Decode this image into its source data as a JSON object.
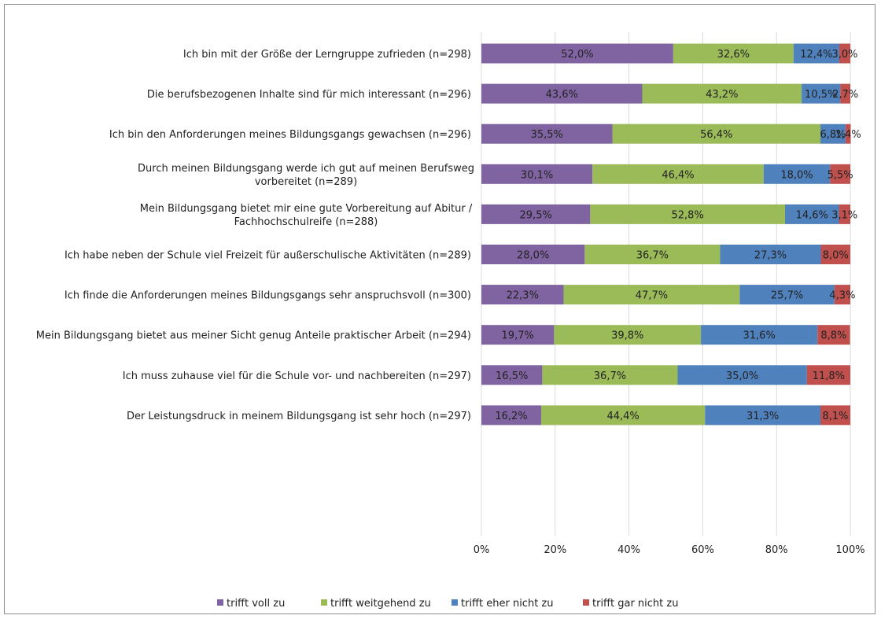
{
  "chart_data": {
    "type": "bar",
    "orientation": "horizontal",
    "stacked": "percent",
    "categories": [
      "Ich bin mit der Größe der Lerngruppe zufrieden (n=298)",
      "Die berufsbezogenen Inhalte sind für mich interessant (n=296)",
      "Ich bin den Anforderungen meines Bildungsgangs gewachsen (n=296)",
      "Durch meinen Bildungsgang werde ich gut auf meinen Berufsweg vorbereitet (n=289)",
      "Mein Bildungsgang bietet mir eine gute Vorbereitung auf Abitur / Fachhochschulreife (n=288)",
      "Ich habe neben der Schule viel Freizeit für außerschulische Aktivitäten (n=289)",
      "Ich finde die Anforderungen meines Bildungsgangs sehr anspruchsvoll (n=300)",
      "Mein Bildungsgang bietet aus meiner Sicht genug Anteile praktischer Arbeit (n=294)",
      "Ich muss zuhause viel für die Schule vor- und nachbereiten (n=297)",
      "Der Leistungsdruck in meinem Bildungsgang ist sehr hoch (n=297)"
    ],
    "category_lines": [
      [
        "Ich bin mit der Größe der Lerngruppe zufrieden (n=298)"
      ],
      [
        "Die berufsbezogenen Inhalte sind für mich interessant (n=296)"
      ],
      [
        "Ich bin den Anforderungen meines Bildungsgangs gewachsen (n=296)"
      ],
      [
        "Durch meinen Bildungsgang werde ich gut auf meinen Berufsweg",
        "vorbereitet (n=289)"
      ],
      [
        "Mein Bildungsgang bietet mir eine gute Vorbereitung auf Abitur /",
        "Fachhochschulreife (n=288)"
      ],
      [
        "Ich habe neben der Schule viel Freizeit für außerschulische Aktivitäten (n=289)"
      ],
      [
        "Ich finde die Anforderungen meines Bildungsgangs sehr anspruchsvoll (n=300)"
      ],
      [
        "Mein Bildungsgang bietet aus meiner Sicht genug Anteile praktischer Arbeit (n=294)"
      ],
      [
        "Ich muss zuhause viel für die Schule vor- und nachbereiten (n=297)"
      ],
      [
        "Der Leistungsdruck in meinem Bildungsgang ist sehr hoch (n=297)"
      ]
    ],
    "series": [
      {
        "name": "trifft voll zu",
        "color": "#8064a2",
        "values": [
          52.0,
          43.6,
          35.5,
          30.1,
          29.5,
          28.0,
          22.3,
          19.7,
          16.5,
          16.2
        ],
        "labels": [
          "52,0%",
          "43,6%",
          "35,5%",
          "30,1%",
          "29,5%",
          "28,0%",
          "22,3%",
          "19,7%",
          "16,5%",
          "16,2%"
        ]
      },
      {
        "name": "trifft weitgehend zu",
        "color": "#9bbb59",
        "values": [
          32.6,
          43.2,
          56.4,
          46.4,
          52.8,
          36.7,
          47.7,
          39.8,
          36.7,
          44.4
        ],
        "labels": [
          "32,6%",
          "43,2%",
          "56,4%",
          "46,4%",
          "52,8%",
          "36,7%",
          "47,7%",
          "39,8%",
          "36,7%",
          "44,4%"
        ]
      },
      {
        "name": "trifft eher nicht zu",
        "color": "#4f81bd",
        "values": [
          12.4,
          10.5,
          6.8,
          18.0,
          14.6,
          27.3,
          25.7,
          31.6,
          35.0,
          31.3
        ],
        "labels": [
          "12,4%",
          "10,5%",
          "6,8%",
          "18,0%",
          "14,6%",
          "27,3%",
          "25,7%",
          "31,6%",
          "35,0%",
          "31,3%"
        ]
      },
      {
        "name": "trifft gar nicht zu",
        "color": "#c0504d",
        "values": [
          3.0,
          2.7,
          1.4,
          5.5,
          3.1,
          8.0,
          4.3,
          8.8,
          11.8,
          8.1
        ],
        "labels": [
          "3,0%",
          "2,7%",
          "1,4%",
          "5,5%",
          "3,1%",
          "8,0%",
          "4,3%",
          "8,8%",
          "11,8%",
          "8,1%"
        ]
      }
    ],
    "x_ticks": [
      "0%",
      "20%",
      "40%",
      "60%",
      "80%",
      "100%"
    ],
    "xlim": [
      0,
      100
    ],
    "grid": true,
    "legend_position": "bottom",
    "title": "",
    "xlabel": "",
    "ylabel": ""
  }
}
